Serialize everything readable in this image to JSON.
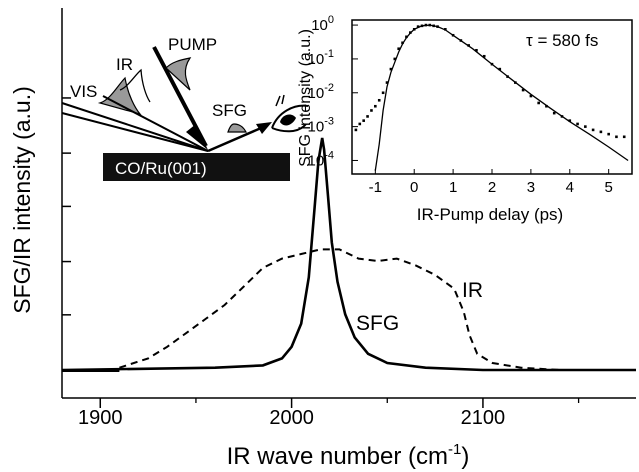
{
  "chart_data": [
    {
      "type": "line",
      "xlabel": "IR wave number (cm",
      "xlabel_sup": "-1",
      "xlabel_end": ")",
      "ylabel": "SFG/IR intensity (a.u.)",
      "xlim": [
        1880,
        2180
      ],
      "ylim": [
        0,
        1.05
      ],
      "x_ticks": [
        1900,
        2000,
        2100
      ],
      "x_minor_ticks": [
        1950,
        2050,
        2150
      ],
      "y_tick_labels_shown": false,
      "grid": false,
      "series": [
        {
          "name": "SFG",
          "style": "solid",
          "points": [
            [
              1880,
              0.0
            ],
            [
              1960,
              0.01
            ],
            [
              1985,
              0.02
            ],
            [
              1995,
              0.05
            ],
            [
              2000,
              0.1
            ],
            [
              2005,
              0.2
            ],
            [
              2009,
              0.4
            ],
            [
              2012,
              0.7
            ],
            [
              2014,
              0.9
            ],
            [
              2016,
              1.0
            ],
            [
              2017,
              0.95
            ],
            [
              2019,
              0.75
            ],
            [
              2021,
              0.55
            ],
            [
              2024,
              0.38
            ],
            [
              2028,
              0.24
            ],
            [
              2033,
              0.14
            ],
            [
              2040,
              0.07
            ],
            [
              2050,
              0.03
            ],
            [
              2070,
              0.01
            ],
            [
              2100,
              0.0
            ],
            [
              2180,
              0.0
            ]
          ]
        },
        {
          "name": "IR",
          "style": "dashed",
          "points": [
            [
              1910,
              0.01
            ],
            [
              1925,
              0.05
            ],
            [
              1935,
              0.1
            ],
            [
              1945,
              0.16
            ],
            [
              1955,
              0.22
            ],
            [
              1965,
              0.28
            ],
            [
              1975,
              0.36
            ],
            [
              1985,
              0.44
            ],
            [
              1995,
              0.48
            ],
            [
              2005,
              0.5
            ],
            [
              2015,
              0.52
            ],
            [
              2025,
              0.52
            ],
            [
              2035,
              0.48
            ],
            [
              2045,
              0.47
            ],
            [
              2055,
              0.48
            ],
            [
              2065,
              0.45
            ],
            [
              2075,
              0.41
            ],
            [
              2085,
              0.35
            ],
            [
              2090,
              0.25
            ],
            [
              2093,
              0.15
            ],
            [
              2097,
              0.07
            ],
            [
              2105,
              0.03
            ],
            [
              2120,
              0.01
            ],
            [
              2140,
              0.0
            ],
            [
              2180,
              0.0
            ]
          ]
        }
      ],
      "annotations": {
        "SFG": "SFG",
        "IR": "IR"
      },
      "schematic": {
        "surface_label": "CO/Ru(001)",
        "beams": [
          "VIS",
          "IR",
          "PUMP",
          "SFG"
        ]
      }
    },
    {
      "type": "scatter",
      "inset": true,
      "xlabel": "IR-Pump delay (ps)",
      "ylabel": "SFG intensity (a.u.)",
      "xlim": [
        -1.6,
        5.6
      ],
      "ylim_log10": [
        -4.4,
        0.15
      ],
      "y_scale": "log",
      "x_tick_labels": [
        "-1",
        "0",
        "1",
        "2",
        "3",
        "4",
        "5"
      ],
      "y_tick_labels": [
        {
          "base": "10",
          "exp": "0"
        },
        {
          "base": "10",
          "exp": "-1"
        },
        {
          "base": "10",
          "exp": "-2"
        },
        {
          "base": "10",
          "exp": "-3"
        },
        {
          "base": "10",
          "exp": "-4"
        }
      ],
      "annotation": {
        "tau_symbol": "τ",
        "text": " = 580 fs"
      },
      "series": [
        {
          "style": "points",
          "points": [
            [
              -1.5,
              0.0008
            ],
            [
              -1.4,
              0.0012
            ],
            [
              -1.3,
              0.0015
            ],
            [
              -1.2,
              0.002
            ],
            [
              -1.1,
              0.003
            ],
            [
              -1.0,
              0.004
            ],
            [
              -0.9,
              0.006
            ],
            [
              -0.8,
              0.01
            ],
            [
              -0.7,
              0.02
            ],
            [
              -0.6,
              0.05
            ],
            [
              -0.5,
              0.1
            ],
            [
              -0.4,
              0.2
            ],
            [
              -0.3,
              0.3
            ],
            [
              -0.2,
              0.45
            ],
            [
              -0.1,
              0.6
            ],
            [
              0.0,
              0.75
            ],
            [
              0.1,
              0.9
            ],
            [
              0.2,
              0.95
            ],
            [
              0.3,
              1.0
            ],
            [
              0.4,
              1.0
            ],
            [
              0.5,
              0.95
            ],
            [
              0.6,
              0.9
            ],
            [
              0.8,
              0.75
            ],
            [
              1.0,
              0.5
            ],
            [
              1.2,
              0.35
            ],
            [
              1.4,
              0.25
            ],
            [
              1.6,
              0.18
            ],
            [
              1.8,
              0.12
            ],
            [
              2.0,
              0.07
            ],
            [
              2.2,
              0.05
            ],
            [
              2.4,
              0.03
            ],
            [
              2.6,
              0.02
            ],
            [
              2.8,
              0.012
            ],
            [
              3.0,
              0.008
            ],
            [
              3.2,
              0.005
            ],
            [
              3.4,
              0.004
            ],
            [
              3.6,
              0.0025
            ],
            [
              3.8,
              0.002
            ],
            [
              4.0,
              0.0015
            ],
            [
              4.2,
              0.0012
            ],
            [
              4.4,
              0.001
            ],
            [
              4.6,
              0.0008
            ],
            [
              4.8,
              0.0007
            ],
            [
              5.0,
              0.0006
            ],
            [
              5.2,
              0.0005
            ],
            [
              5.4,
              0.0005
            ]
          ]
        },
        {
          "style": "line",
          "points": [
            [
              -1.0,
              5e-05
            ],
            [
              -0.9,
              0.0003
            ],
            [
              -0.8,
              0.003
            ],
            [
              -0.7,
              0.015
            ],
            [
              -0.6,
              0.04
            ],
            [
              -0.5,
              0.08
            ],
            [
              -0.4,
              0.16
            ],
            [
              -0.3,
              0.28
            ],
            [
              -0.2,
              0.42
            ],
            [
              -0.1,
              0.58
            ],
            [
              0.0,
              0.75
            ],
            [
              0.2,
              0.95
            ],
            [
              0.4,
              1.0
            ],
            [
              0.6,
              0.9
            ],
            [
              0.8,
              0.72
            ],
            [
              1.0,
              0.5
            ],
            [
              1.5,
              0.2
            ],
            [
              2.0,
              0.07
            ],
            [
              2.5,
              0.025
            ],
            [
              3.0,
              0.009
            ],
            [
              3.5,
              0.0035
            ],
            [
              4.0,
              0.0014
            ],
            [
              4.5,
              0.0006
            ],
            [
              5.0,
              0.00025
            ],
            [
              5.5,
              0.0001
            ]
          ]
        }
      ]
    }
  ]
}
